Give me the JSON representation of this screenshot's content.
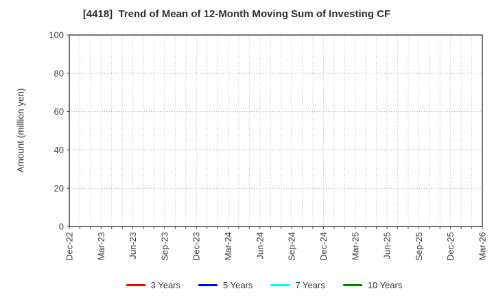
{
  "figure": {
    "background": "#ffffff"
  },
  "chart_data": {
    "type": "line",
    "title": "[4418]  Trend of Mean of 12-Month Moving Sum of Investing CF",
    "ylabel": "Amount (million yen)",
    "xlabel": "",
    "ylim": [
      0,
      100
    ],
    "y_ticks": [
      0,
      20,
      40,
      60,
      80,
      100
    ],
    "x_tick_labels": [
      "Dec-22",
      "Mar-23",
      "Jun-23",
      "Sep-23",
      "Dec-23",
      "Mar-24",
      "Jun-24",
      "Sep-24",
      "Dec-24",
      "Mar-25",
      "Jun-25",
      "Sep-25",
      "Dec-25",
      "Mar-26"
    ],
    "x_minor_per_major": 3,
    "grid": true,
    "legend_position": "bottom",
    "series": [
      {
        "name": "3 Years",
        "color": "#ff0000",
        "values": []
      },
      {
        "name": "5 Years",
        "color": "#0000ff",
        "values": []
      },
      {
        "name": "7 Years",
        "color": "#00ffff",
        "values": []
      },
      {
        "name": "10 Years",
        "color": "#008000",
        "values": []
      }
    ],
    "style": {
      "axis_color": "#3a3a3a",
      "tick_label_color": "#3a3a3a",
      "title_color": "#2e2e2e",
      "hgrid_color": "#999999",
      "vgrid_color": "#b5b5b5",
      "legend_text_color": "#333333"
    }
  }
}
